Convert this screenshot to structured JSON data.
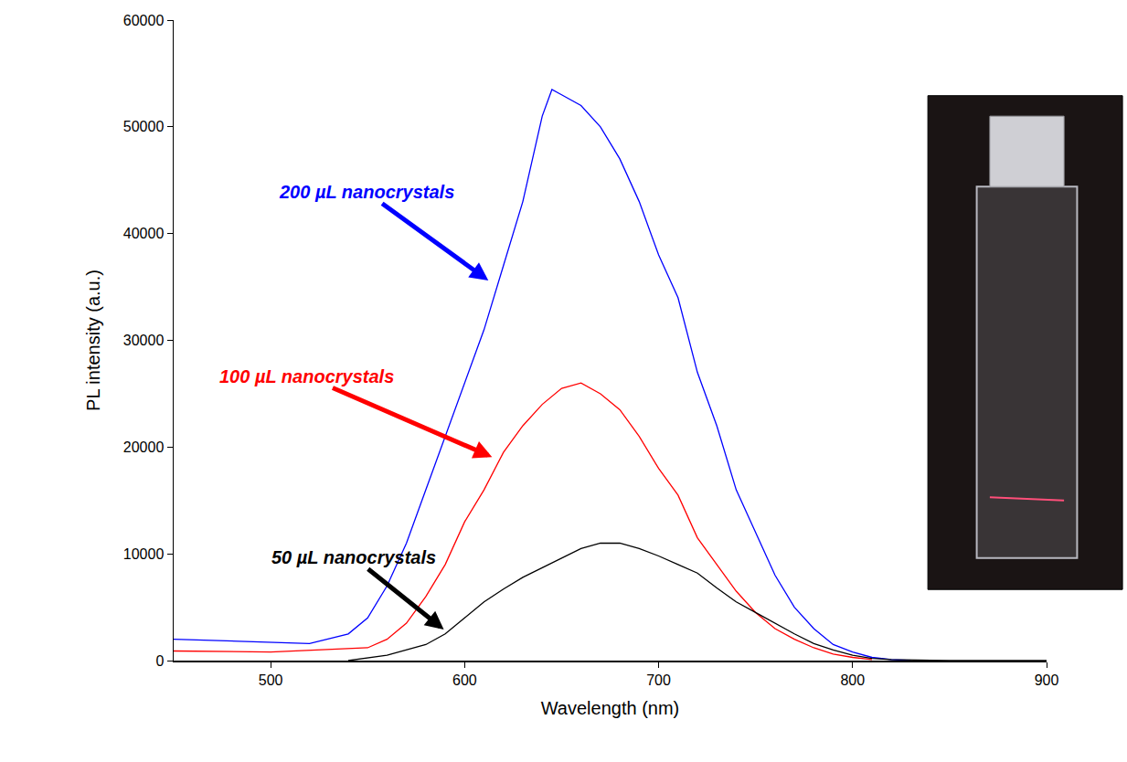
{
  "chart_data": {
    "type": "line",
    "x_label": "Wavelength (nm)",
    "y_label": "PL intensity (a.u.)",
    "xlim": [
      450,
      900
    ],
    "xticks": [
      500,
      600,
      700,
      800,
      900
    ],
    "ylim": [
      0,
      60000
    ],
    "yticks": [
      0,
      10000,
      20000,
      30000,
      40000,
      50000,
      60000
    ],
    "grid": false,
    "series": [
      {
        "name": "200 µL nanocrystals",
        "color": "#0000ff",
        "x": [
          450,
          500,
          520,
          540,
          550,
          560,
          570,
          580,
          590,
          600,
          610,
          620,
          630,
          640,
          645,
          650,
          660,
          670,
          680,
          690,
          700,
          710,
          720,
          730,
          740,
          750,
          760,
          770,
          780,
          790,
          800,
          810,
          820,
          830
        ],
        "values": [
          2000,
          1700,
          1600,
          2500,
          4000,
          7000,
          11000,
          16000,
          21000,
          26000,
          31000,
          37000,
          43000,
          51000,
          53500,
          53000,
          52000,
          50000,
          47000,
          43000,
          38000,
          34000,
          27000,
          22000,
          16000,
          12000,
          8000,
          5000,
          3000,
          1500,
          800,
          300,
          100,
          0
        ]
      },
      {
        "name": "100 µL nanocrystals",
        "color": "#ff0000",
        "x": [
          450,
          500,
          550,
          560,
          570,
          580,
          590,
          600,
          610,
          620,
          630,
          640,
          650,
          660,
          670,
          680,
          690,
          700,
          710,
          720,
          730,
          740,
          750,
          760,
          770,
          780,
          790,
          800,
          810
        ],
        "values": [
          900,
          800,
          1200,
          2000,
          3500,
          6000,
          9000,
          13000,
          16000,
          19500,
          22000,
          24000,
          25500,
          26000,
          25000,
          23500,
          21000,
          18000,
          15500,
          11500,
          9000,
          6500,
          4500,
          3000,
          2000,
          1200,
          600,
          300,
          100
        ]
      },
      {
        "name": "50 µL nanocrystals",
        "color": "#000000",
        "x": [
          540,
          560,
          580,
          590,
          600,
          610,
          620,
          630,
          640,
          650,
          660,
          670,
          680,
          690,
          700,
          710,
          720,
          730,
          740,
          750,
          760,
          770,
          780,
          790,
          800,
          810,
          820,
          850,
          900
        ],
        "values": [
          0,
          500,
          1500,
          2500,
          4000,
          5500,
          6700,
          7800,
          8700,
          9600,
          10500,
          11000,
          11000,
          10500,
          9800,
          9000,
          8200,
          6800,
          5500,
          4500,
          3500,
          2500,
          1600,
          1000,
          500,
          200,
          100,
          0,
          0
        ]
      }
    ],
    "annotations": [
      {
        "text": "200 µL nanocrystals",
        "x": 613,
        "y": 35500,
        "color": "#0000ff"
      },
      {
        "text": "100 µL nanocrystals",
        "x": 615,
        "y": 19000,
        "color": "#ff0000"
      },
      {
        "text": "50 µL nanocrystals",
        "x": 590,
        "y": 2800,
        "color": "#000000"
      }
    ]
  }
}
